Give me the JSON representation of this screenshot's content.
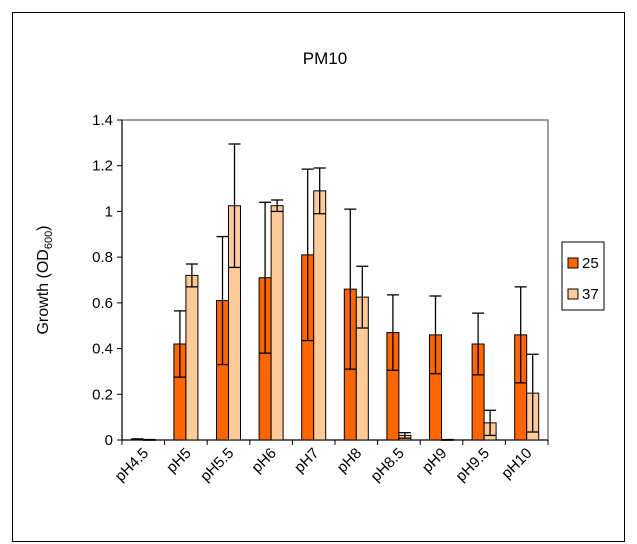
{
  "colors": {
    "series_25": "#ff6600",
    "series_37": "#ffcc99",
    "axis": "#808080",
    "error_bar": "#000000"
  },
  "chart_data": {
    "type": "bar",
    "title": "PM10",
    "ylabel": "Growth (OD",
    "ylabel_subscript": "600",
    "ylabel_close": ")",
    "ylim": [
      0,
      1.4
    ],
    "yticks": [
      0,
      0.2,
      0.4,
      0.6,
      0.8,
      1,
      1.2,
      1.4
    ],
    "ytick_labels": [
      "0",
      "0.2",
      "0.4",
      "0.6",
      "0.8",
      "1",
      "1.2",
      "1.4"
    ],
    "categories": [
      "pH4.5",
      "pH5",
      "pH5.5",
      "pH6",
      "pH7",
      "pH8",
      "pH8.5",
      "pH9",
      "pH9.5",
      "pH10"
    ],
    "series": [
      {
        "name": "25",
        "values": [
          0.003,
          0.42,
          0.61,
          0.71,
          0.81,
          0.66,
          0.47,
          0.46,
          0.42,
          0.46
        ],
        "errors": [
          0.002,
          0.145,
          0.28,
          0.33,
          0.375,
          0.35,
          0.165,
          0.17,
          0.135,
          0.21
        ]
      },
      {
        "name": "37",
        "values": [
          0.001,
          0.72,
          1.025,
          1.025,
          1.09,
          0.625,
          0.02,
          0.001,
          0.075,
          0.205
        ],
        "errors": [
          0.001,
          0.05,
          0.27,
          0.025,
          0.1,
          0.135,
          0.012,
          0.001,
          0.055,
          0.17
        ]
      }
    ],
    "legend_position": "right",
    "grid": false
  }
}
